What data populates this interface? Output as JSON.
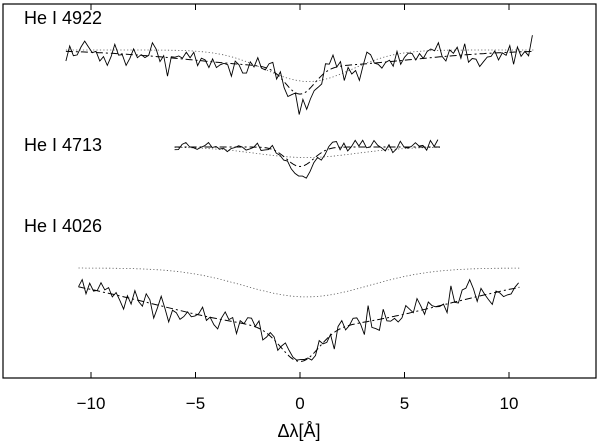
{
  "chart_data": {
    "type": "line",
    "xlabel": "Δλ[Å]",
    "ylabel": "",
    "xlim": [
      -14,
      14
    ],
    "xticks": [
      -10,
      -5,
      0,
      5,
      10
    ],
    "xtick_labels": [
      "−10",
      "−5",
      "0",
      "5",
      "10"
    ],
    "yticks": [],
    "grid": false,
    "panels": [
      {
        "label": "He I 4922",
        "x_range": [
          -11.2,
          11.2
        ],
        "continuum": 1.0,
        "depth_observed": 0.26,
        "fit": {
          "center": 0.0,
          "depth_narrow": 0.13,
          "width_narrow": 0.7,
          "depth_broad": 0.08,
          "width_broad": 5.0
        },
        "component": {
          "center": 0.4,
          "depth": 0.15,
          "width": 2.1
        }
      },
      {
        "label": "He I 4713",
        "x_range": [
          -6.0,
          6.7
        ],
        "continuum": 1.0,
        "depth_observed": 0.2,
        "fit": {
          "center": 0.0,
          "depth_narrow": 0.13,
          "width_narrow": 0.65,
          "depth_broad": 0.0,
          "width_broad": 1.0
        },
        "component": {
          "center": 0.3,
          "depth": 0.07,
          "width": 2.4
        }
      },
      {
        "label": "He I 4026",
        "x_range": [
          -10.6,
          10.5
        ],
        "continuum": 1.0,
        "depth_observed": 0.55,
        "fit": {
          "center": 0.0,
          "depth_narrow": 0.2,
          "width_narrow": 0.9,
          "depth_broad": 0.35,
          "width_broad": 7.0
        },
        "component": {
          "center": 0.3,
          "depth": 0.17,
          "width": 3.0
        }
      }
    ]
  }
}
